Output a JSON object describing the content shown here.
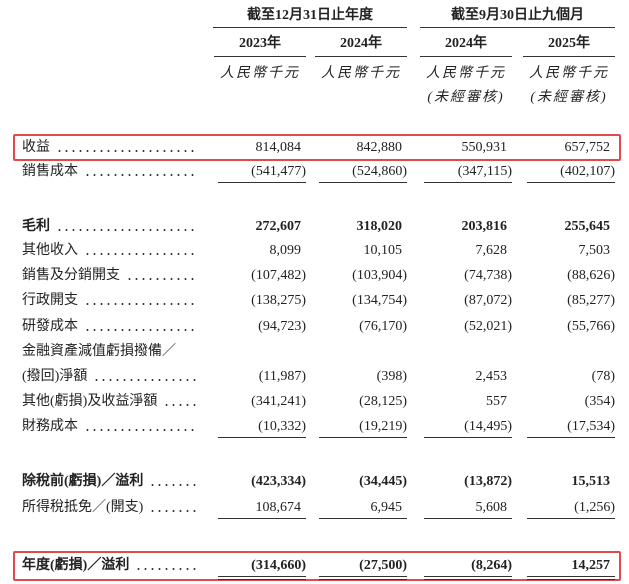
{
  "header": {
    "groups": [
      "截至12月31日止年度",
      "截至9月30日止九個月"
    ],
    "years": [
      "2023年",
      "2024年",
      "2024年",
      "2025年"
    ],
    "units": [
      "人民幣千元",
      "人民幣千元",
      "人民幣千元",
      "人民幣千元"
    ],
    "unaudited": [
      "(未經審核)",
      "(未經審核)"
    ]
  },
  "table": {
    "rows": [
      {
        "label": "收益",
        "values": [
          "814,084",
          "842,880",
          "550,931",
          "657,752"
        ]
      },
      {
        "label": "銷售成本",
        "values": [
          "(541,477)",
          "(524,860)",
          "(347,115)",
          "(402,107)"
        ]
      },
      {
        "label": "毛利",
        "values": [
          "272,607",
          "318,020",
          "203,816",
          "255,645"
        ]
      },
      {
        "label": "其他收入",
        "values": [
          "8,099",
          "10,105",
          "7,628",
          "7,503"
        ]
      },
      {
        "label": "銷售及分銷開支",
        "values": [
          "(107,482)",
          "(103,904)",
          "(74,738)",
          "(88,626)"
        ]
      },
      {
        "label": "行政開支",
        "values": [
          "(138,275)",
          "(134,754)",
          "(87,072)",
          "(85,277)"
        ]
      },
      {
        "label": "研發成本",
        "values": [
          "(94,723)",
          "(76,170)",
          "(52,021)",
          "(55,766)"
        ]
      },
      {
        "label": [
          "金融資產減值虧損撥備／",
          "(撥回)淨額"
        ],
        "values": [
          "(11,987)",
          "(398)",
          "2,453",
          "(78)"
        ]
      },
      {
        "label": "其他(虧損)及收益淨額",
        "values": [
          "(341,241)",
          "(28,125)",
          "557",
          "(354)"
        ]
      },
      {
        "label": "財務成本",
        "values": [
          "(10,332)",
          "(19,219)",
          "(14,495)",
          "(17,534)"
        ]
      },
      {
        "label": "除稅前(虧損)／溢利",
        "values": [
          "(423,334)",
          "(34,445)",
          "(13,872)",
          "15,513"
        ]
      },
      {
        "label": "所得稅抵免／(開支)",
        "values": [
          "108,674",
          "6,945",
          "5,608",
          "(1,256)"
        ]
      },
      {
        "label": "年度(虧損)／溢利",
        "values": [
          "(314,660)",
          "(27,500)",
          "(8,264)",
          "14,257"
        ]
      }
    ]
  }
}
